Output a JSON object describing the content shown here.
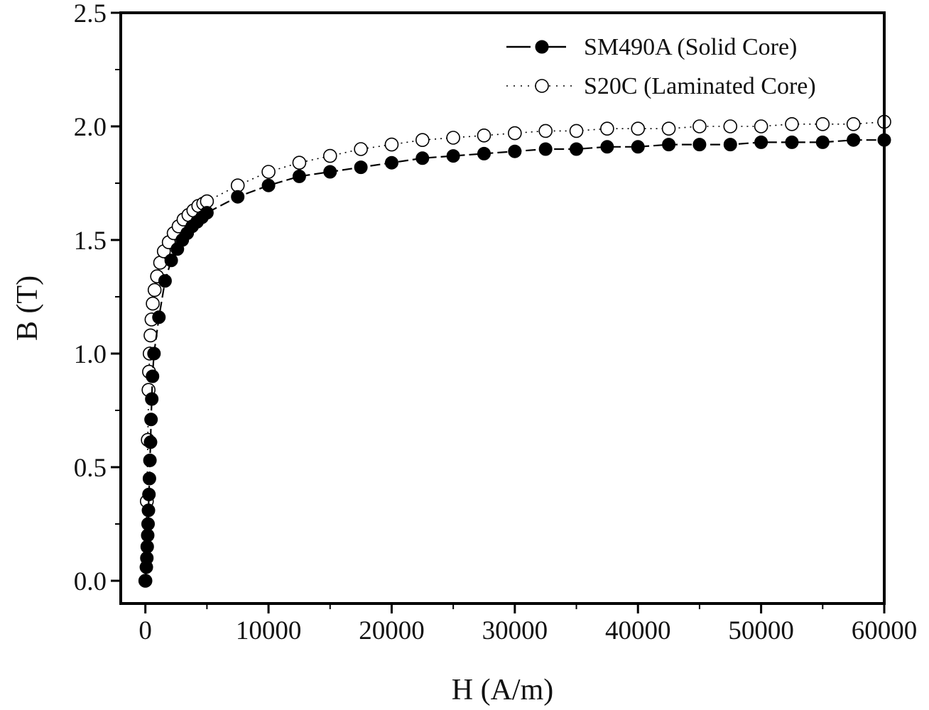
{
  "chart_data": {
    "type": "line",
    "xlabel": "H (A/m)",
    "ylabel": "B (T)",
    "xlim": [
      -2000,
      60000
    ],
    "ylim": [
      -0.1,
      2.5
    ],
    "xticks": [
      0,
      10000,
      20000,
      30000,
      40000,
      50000,
      60000
    ],
    "xtick_labels": [
      "0",
      "10000",
      "20000",
      "30000",
      "40000",
      "50000",
      "60000"
    ],
    "yticks": [
      0.0,
      0.5,
      1.0,
      1.5,
      2.0,
      2.5
    ],
    "ytick_labels": [
      "0.0",
      "0.5",
      "1.0",
      "1.5",
      "2.0",
      "2.5"
    ],
    "grid": false,
    "legend_position": "top-right",
    "series": [
      {
        "name": "SM490A (Solid Core)",
        "marker": "filled-circle",
        "line_style": "dashed",
        "color": "#000000",
        "points": [
          [
            0,
            0.0
          ],
          [
            80,
            0.06
          ],
          [
            120,
            0.1
          ],
          [
            150,
            0.15
          ],
          [
            190,
            0.2
          ],
          [
            220,
            0.25
          ],
          [
            250,
            0.31
          ],
          [
            290,
            0.38
          ],
          [
            330,
            0.45
          ],
          [
            370,
            0.53
          ],
          [
            420,
            0.61
          ],
          [
            460,
            0.71
          ],
          [
            520,
            0.8
          ],
          [
            580,
            0.9
          ],
          [
            700,
            1.0
          ],
          [
            1100,
            1.16
          ],
          [
            1600,
            1.32
          ],
          [
            2100,
            1.41
          ],
          [
            2600,
            1.46
          ],
          [
            3000,
            1.5
          ],
          [
            3400,
            1.53
          ],
          [
            3800,
            1.56
          ],
          [
            4200,
            1.58
          ],
          [
            4600,
            1.6
          ],
          [
            5000,
            1.62
          ],
          [
            7500,
            1.69
          ],
          [
            10000,
            1.74
          ],
          [
            12500,
            1.78
          ],
          [
            15000,
            1.8
          ],
          [
            17500,
            1.82
          ],
          [
            20000,
            1.84
          ],
          [
            22500,
            1.86
          ],
          [
            25000,
            1.87
          ],
          [
            27500,
            1.88
          ],
          [
            30000,
            1.89
          ],
          [
            32500,
            1.9
          ],
          [
            35000,
            1.9
          ],
          [
            37500,
            1.91
          ],
          [
            40000,
            1.91
          ],
          [
            42500,
            1.92
          ],
          [
            45000,
            1.92
          ],
          [
            47500,
            1.92
          ],
          [
            50000,
            1.93
          ],
          [
            52500,
            1.93
          ],
          [
            55000,
            1.93
          ],
          [
            57500,
            1.94
          ],
          [
            60000,
            1.94
          ]
        ]
      },
      {
        "name": "S20C (Laminated Core)",
        "marker": "open-circle",
        "line_style": "dotted",
        "color": "#000000",
        "points": [
          [
            0,
            0.0
          ],
          [
            120,
            0.35
          ],
          [
            200,
            0.62
          ],
          [
            260,
            0.84
          ],
          [
            300,
            0.92
          ],
          [
            350,
            1.0
          ],
          [
            420,
            1.08
          ],
          [
            500,
            1.15
          ],
          [
            600,
            1.22
          ],
          [
            750,
            1.28
          ],
          [
            950,
            1.34
          ],
          [
            1200,
            1.4
          ],
          [
            1500,
            1.45
          ],
          [
            1900,
            1.49
          ],
          [
            2300,
            1.53
          ],
          [
            2700,
            1.56
          ],
          [
            3100,
            1.59
          ],
          [
            3500,
            1.61
          ],
          [
            3900,
            1.63
          ],
          [
            4300,
            1.65
          ],
          [
            4700,
            1.66
          ],
          [
            5000,
            1.67
          ],
          [
            7500,
            1.74
          ],
          [
            10000,
            1.8
          ],
          [
            12500,
            1.84
          ],
          [
            15000,
            1.87
          ],
          [
            17500,
            1.9
          ],
          [
            20000,
            1.92
          ],
          [
            22500,
            1.94
          ],
          [
            25000,
            1.95
          ],
          [
            27500,
            1.96
          ],
          [
            30000,
            1.97
          ],
          [
            32500,
            1.98
          ],
          [
            35000,
            1.98
          ],
          [
            37500,
            1.99
          ],
          [
            40000,
            1.99
          ],
          [
            42500,
            1.99
          ],
          [
            45000,
            2.0
          ],
          [
            47500,
            2.0
          ],
          [
            50000,
            2.0
          ],
          [
            52500,
            2.01
          ],
          [
            55000,
            2.01
          ],
          [
            57500,
            2.01
          ],
          [
            60000,
            2.02
          ]
        ]
      }
    ]
  }
}
